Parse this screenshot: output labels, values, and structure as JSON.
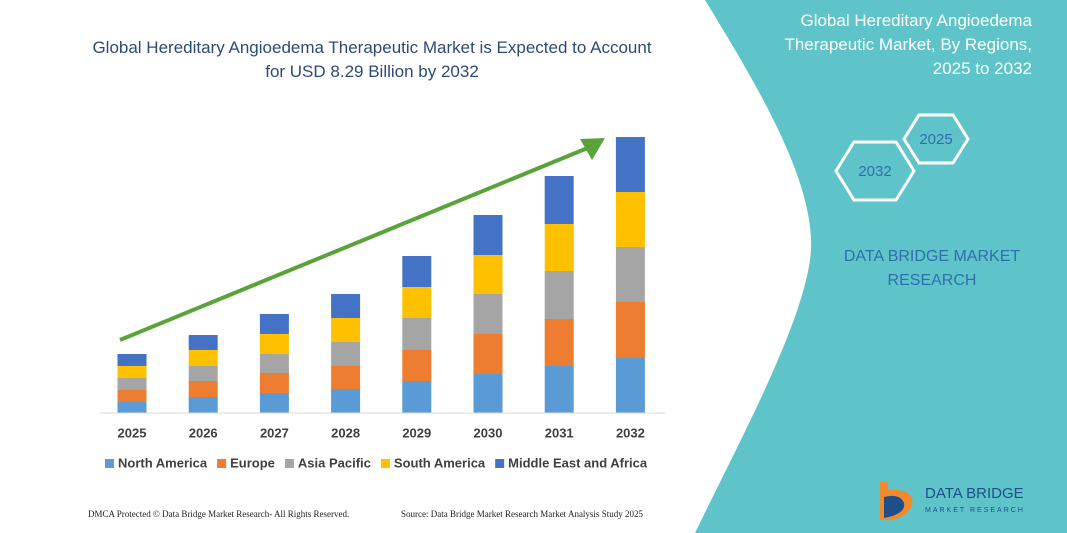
{
  "chart_data": {
    "type": "stacked_bar",
    "title": "Global Hereditary Angioedema Therapeutic Market is Expected to Account for USD 8.29 Billion by 2032",
    "categories": [
      "2025",
      "2026",
      "2027",
      "2028",
      "2029",
      "2030",
      "2031",
      "2032"
    ],
    "series": [
      {
        "name": "North America",
        "color": "#5b9bd5",
        "values": [
          11,
          16,
          20,
          24,
          32,
          39,
          47,
          55
        ]
      },
      {
        "name": "Europe",
        "color": "#ed7d31",
        "values": [
          12,
          16,
          20,
          23,
          31,
          40,
          47,
          56
        ]
      },
      {
        "name": "Asia Pacific",
        "color": "#a5a5a5",
        "values": [
          12,
          15,
          19,
          24,
          32,
          40,
          48,
          55
        ]
      },
      {
        "name": "South America",
        "color": "#ffc000",
        "values": [
          12,
          16,
          20,
          24,
          31,
          39,
          47,
          55
        ]
      },
      {
        "name": "Middle East and Africa",
        "color": "#4472c4",
        "values": [
          12,
          15,
          20,
          24,
          31,
          40,
          48,
          55
        ]
      }
    ]
  },
  "panel": {
    "title": "Global Hereditary Angioedema Therapeutic Market, By Regions, 2025 to 2032",
    "hex_start": "2025",
    "hex_end": "2032",
    "brand": "DATA BRIDGE MARKET RESEARCH"
  },
  "logo": {
    "name": "DATA BRIDGE",
    "tagline": "MARKET RESEARCH"
  },
  "footer": {
    "left": "DMCA Protected © Data Bridge Market Research- All Rights Reserved.",
    "right": "Source: Data Bridge Market Research Market Analysis Study 2025"
  }
}
